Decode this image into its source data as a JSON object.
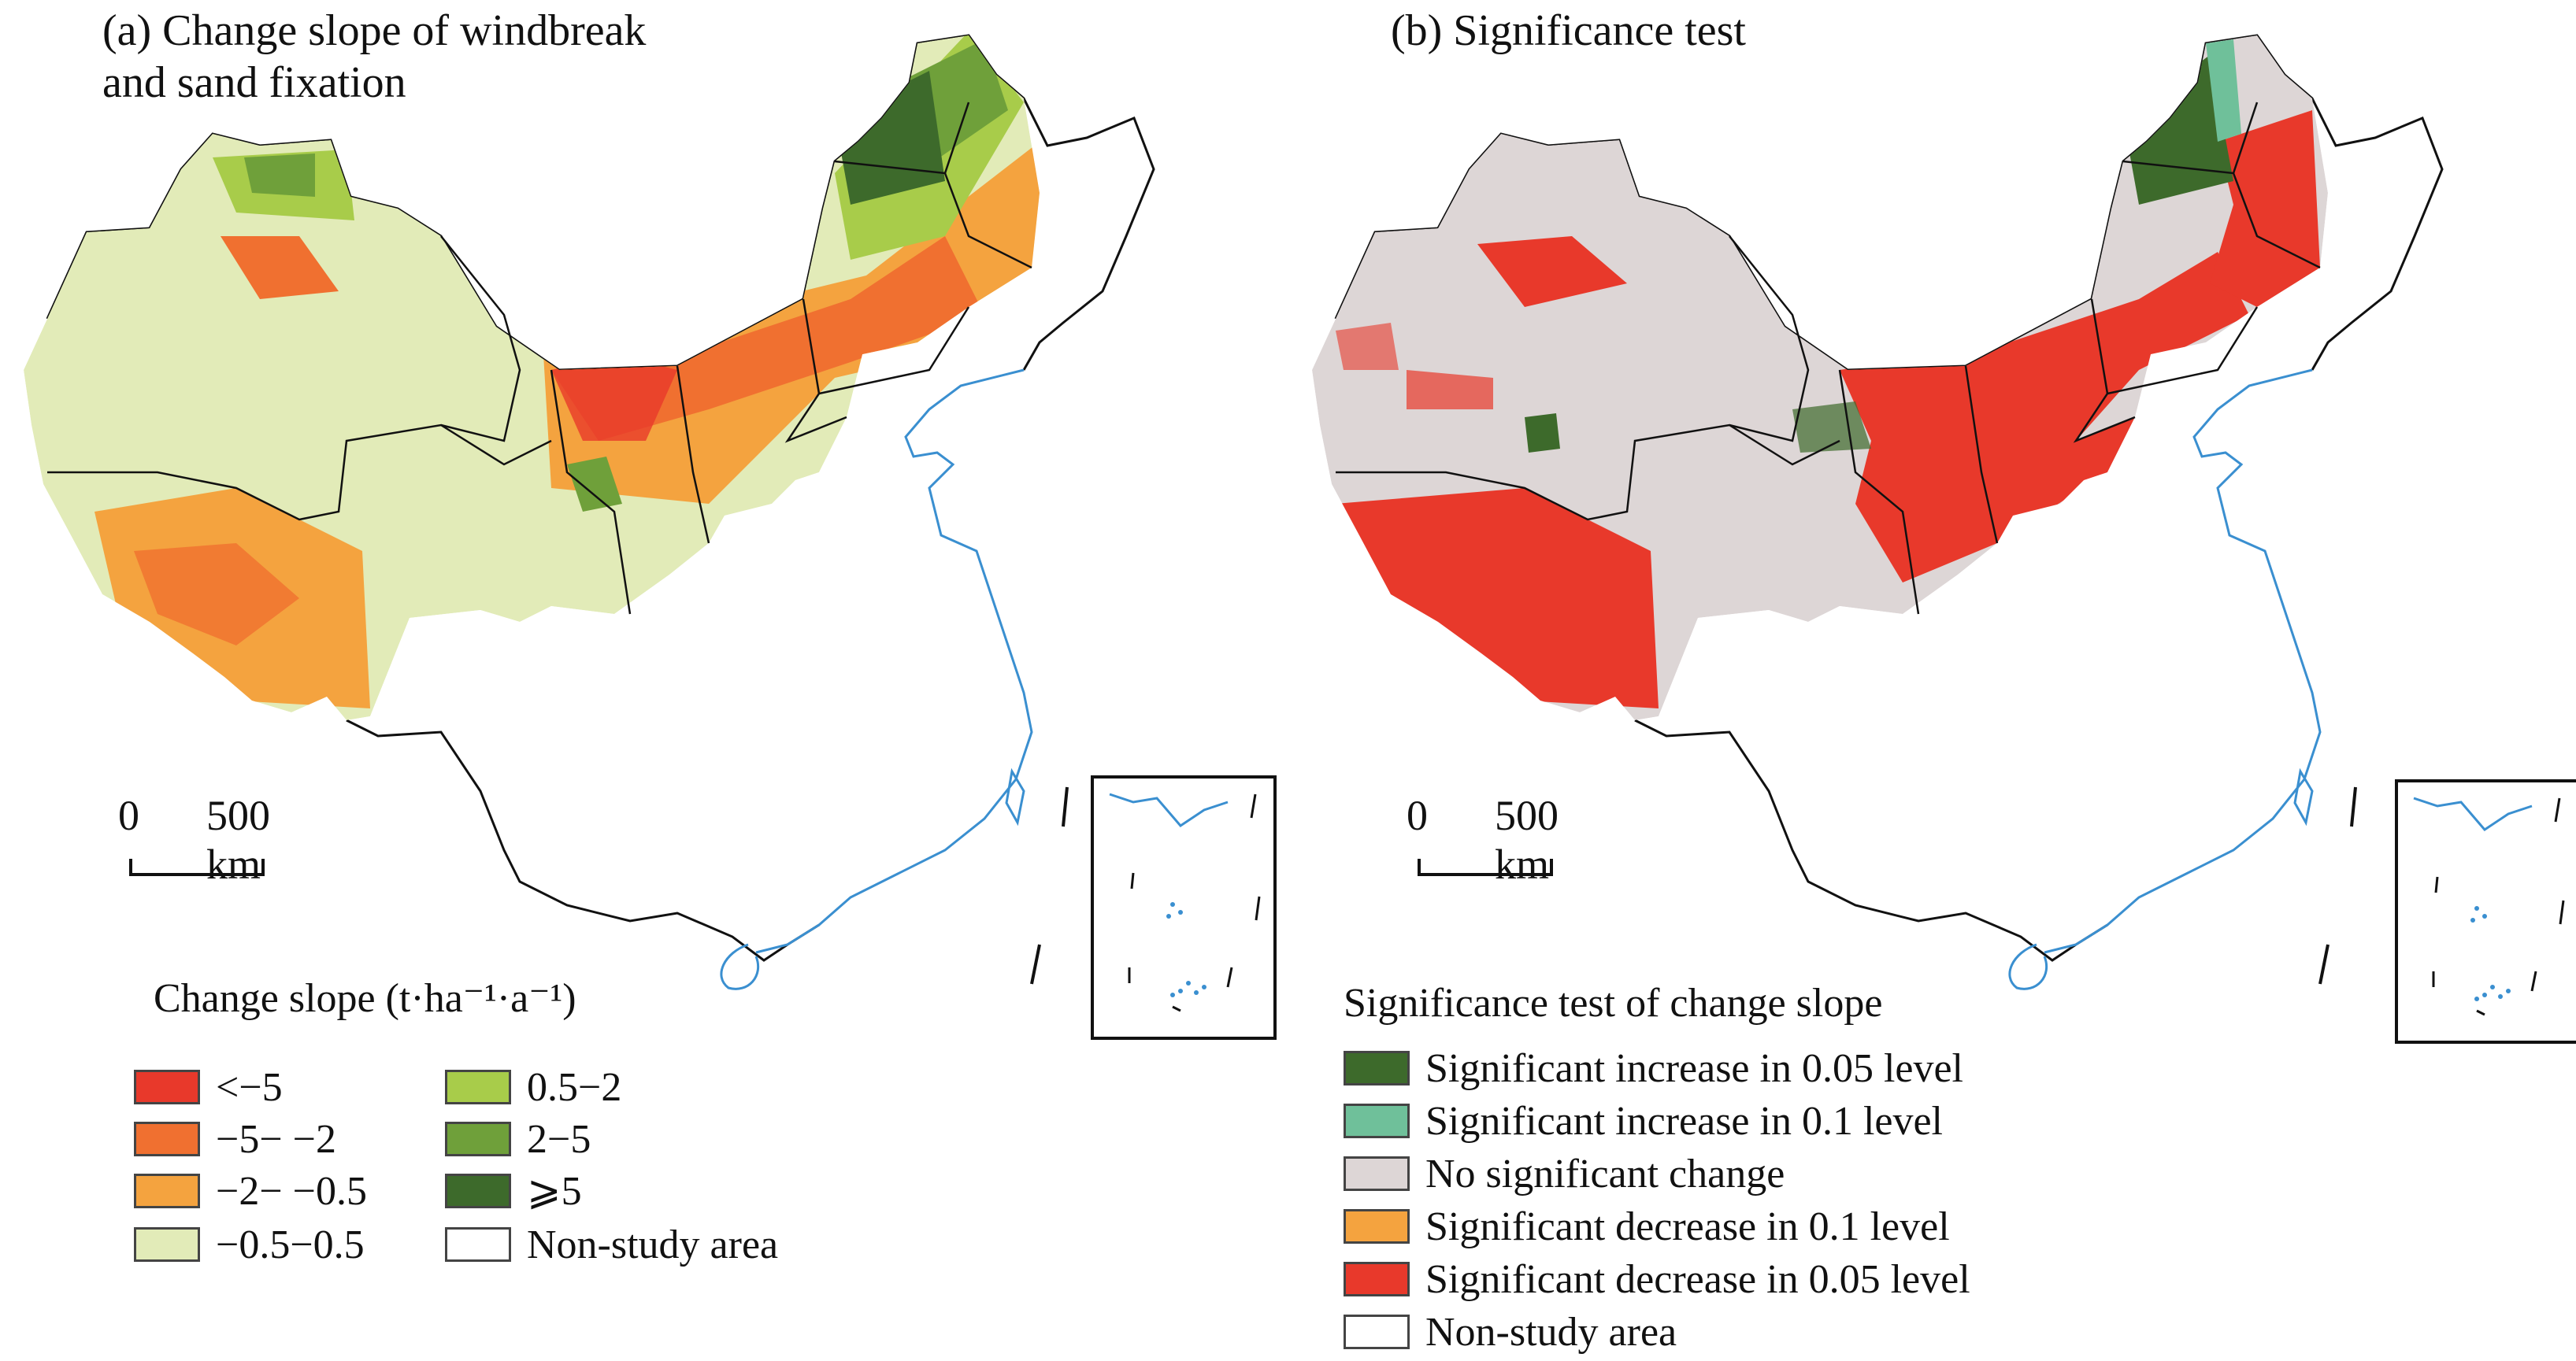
{
  "panel_a": {
    "title_line1": "(a) Change slope of windbreak",
    "title_line2": "and sand fixation",
    "scale_zero": "0",
    "scale_dist": "500 km",
    "legend_title": "Change slope (t·ha⁻¹·a⁻¹)",
    "legend": [
      {
        "label": "<−5",
        "color": "#e8392b"
      },
      {
        "label": "−5− −2",
        "color": "#f07030"
      },
      {
        "label": "−2− −0.5",
        "color": "#f4a33f"
      },
      {
        "label": "−0.5−0.5",
        "color": "#e2ebb8"
      },
      {
        "label": "0.5−2",
        "color": "#a8cc4a"
      },
      {
        "label": "2−5",
        "color": "#6fa03a"
      },
      {
        "label": "⩾5",
        "color": "#3d6a2b"
      },
      {
        "label": "Non-study area",
        "color": "#ffffff"
      }
    ]
  },
  "panel_b": {
    "title_line1": "(b) Significance test",
    "scale_zero": "0",
    "scale_dist": "500 km",
    "legend_title": "Significance test of change slope",
    "legend": [
      {
        "label": "Significant increase in 0.05 level",
        "color": "#3d6a2b"
      },
      {
        "label": "Significant increase in 0.1 level",
        "color": "#6fc09a"
      },
      {
        "label": "No significant change",
        "color": "#ddd6d6"
      },
      {
        "label": "Significant decrease in 0.1 level",
        "color": "#f4a33f"
      },
      {
        "label": "Significant decrease in 0.05 level",
        "color": "#e8392b"
      },
      {
        "label": "Non-study area",
        "color": "#ffffff"
      }
    ]
  },
  "colors": {
    "coastline": "#3a8fd0",
    "border": "#111111"
  }
}
